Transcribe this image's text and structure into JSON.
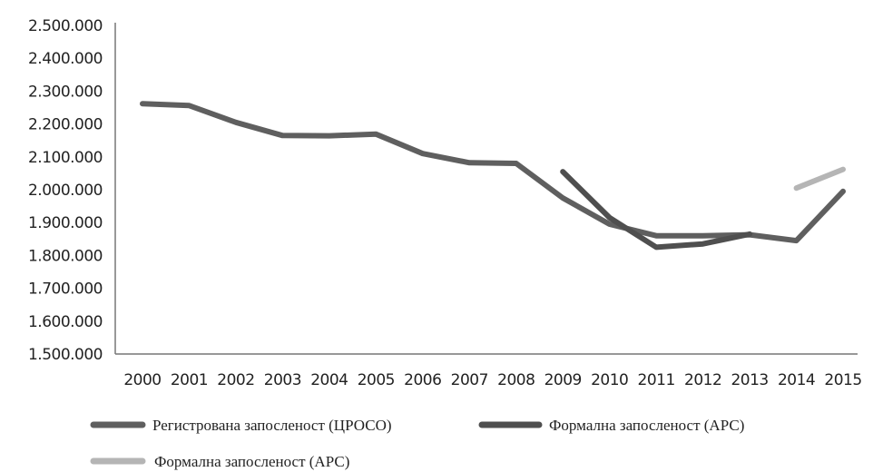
{
  "chart_data": {
    "type": "line",
    "x": [
      "2000",
      "2001",
      "2002",
      "2003",
      "2004",
      "2005",
      "2006",
      "2007",
      "2008",
      "2009",
      "2010",
      "2011",
      "2012",
      "2013",
      "2014",
      "2015"
    ],
    "ylim": [
      1500000,
      2500000
    ],
    "yticks": [
      {
        "value": 1500000,
        "label": "1.500.000"
      },
      {
        "value": 1600000,
        "label": "1.600.000"
      },
      {
        "value": 1700000,
        "label": "1.700.000"
      },
      {
        "value": 1800000,
        "label": "1.800.000"
      },
      {
        "value": 1900000,
        "label": "1.900.000"
      },
      {
        "value": 2000000,
        "label": "2.000.000"
      },
      {
        "value": 2100000,
        "label": "2.100.000"
      },
      {
        "value": 2200000,
        "label": "2.200.000"
      },
      {
        "value": 2300000,
        "label": "2.300.000"
      },
      {
        "value": 2400000,
        "label": "2.400.000"
      },
      {
        "value": 2500000,
        "label": "2.500.000"
      }
    ],
    "series": [
      {
        "name": "Регистрована запосленост (ЦРОСО)",
        "color": "#5f5f5f",
        "values": [
          2262000,
          2256000,
          2205000,
          2165000,
          2164000,
          2169000,
          2110000,
          2082000,
          2080000,
          1975000,
          1895000,
          1860000,
          1860000,
          1863000,
          1845000,
          1995000
        ]
      },
      {
        "name": "Формална запосленост (АРС)",
        "color": "#4f4f4f",
        "values": [
          null,
          null,
          null,
          null,
          null,
          null,
          null,
          null,
          null,
          2055000,
          1915000,
          1825000,
          1835000,
          1865000,
          null,
          null
        ]
      },
      {
        "name": "Формална запосленост (АРС)",
        "color": "#b5b5b5",
        "values": [
          null,
          null,
          null,
          null,
          null,
          null,
          null,
          null,
          null,
          null,
          null,
          null,
          null,
          null,
          2005000,
          2062000
        ]
      }
    ],
    "legend_placement": "bottom",
    "grid": false
  }
}
